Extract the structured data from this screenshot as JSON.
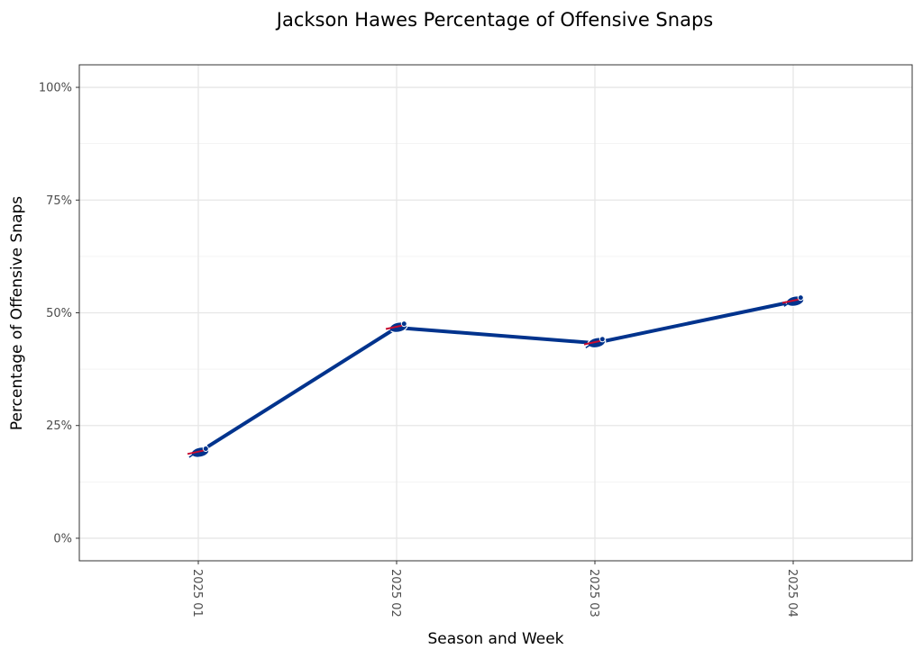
{
  "chart_data": {
    "type": "line",
    "title": "Jackson Hawes Percentage of Offensive Snaps",
    "xlabel": "Season and Week",
    "ylabel": "Percentage of Offensive Snaps",
    "categories": [
      "2025 01",
      "2025 02",
      "2025 03",
      "2025 04"
    ],
    "values": [
      0.19,
      0.467,
      0.433,
      0.525
    ],
    "ylim": [
      -0.05,
      1.05
    ],
    "yticks": [
      0,
      0.25,
      0.5,
      0.75,
      1.0
    ],
    "ytick_labels": [
      "0%",
      "25%",
      "50%",
      "75%",
      "100%"
    ],
    "grid": true,
    "line_color": "#00338D",
    "marker": "buffalo-bills-logo-icon",
    "marker_colors": {
      "primary": "#00338D",
      "accent": "#C60C30",
      "white": "#ffffff"
    }
  }
}
